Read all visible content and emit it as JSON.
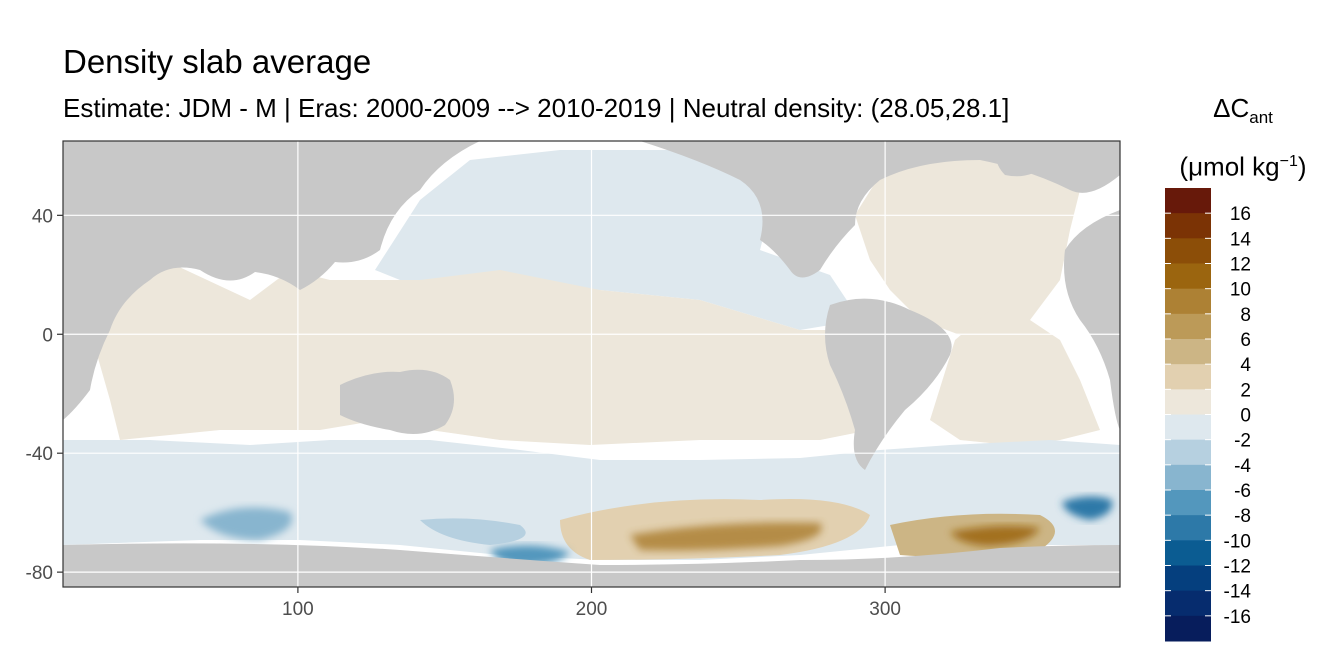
{
  "chart_data": {
    "type": "heatmap",
    "title": "Density slab average",
    "subtitle": "Estimate: JDM - M | Eras: 2000-2009 --> 2010-2019 | Neutral density: (28.05,28.1]",
    "xlim": [
      20,
      380
    ],
    "ylim": [
      -85,
      65
    ],
    "x_ticks": [
      100,
      200,
      300
    ],
    "y_ticks": [
      40,
      0,
      -40,
      -80
    ],
    "grid": true,
    "legend": {
      "placement": "right",
      "title_main": "ΔC",
      "title_sub": "ant",
      "unit_main": "(μmol kg",
      "unit_sup": "−1",
      "unit_close": ")",
      "labels": [
        "16",
        "14",
        "12",
        "10",
        "8",
        "6",
        "4",
        "2",
        "0",
        "-2",
        "-4",
        "-6",
        "-8",
        "-10",
        "-12",
        "-14",
        "-16"
      ],
      "colors": [
        "#67190a",
        "#7b3305",
        "#8c4e08",
        "#9b650f",
        "#ad8134",
        "#bc9a58",
        "#ccb585",
        "#e2d0b0",
        "#ede7db",
        "#dee8ee",
        "#b6d0e0",
        "#88b5cf",
        "#5397bd",
        "#2d79a8",
        "#0b5c92",
        "#053f7e",
        "#062c6e",
        "#071d5c"
      ]
    },
    "colors": {
      "land": "#c8c8c8",
      "background_grid": "#ffffff",
      "neutral_positive": "#ede7db",
      "neutral_negative": "#dee8ee"
    }
  }
}
